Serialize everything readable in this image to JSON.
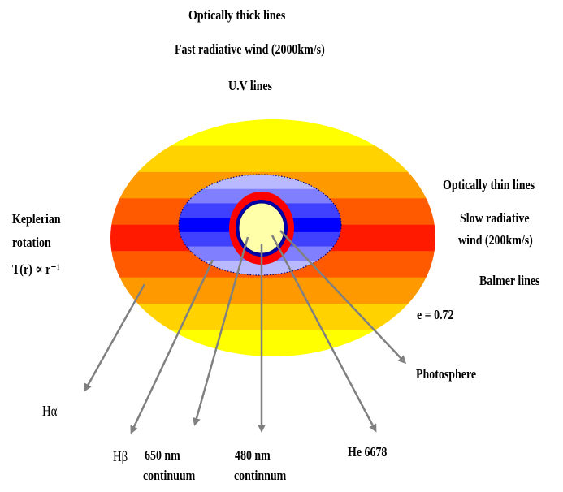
{
  "top_labels": {
    "optically_thick": "Optically thick lines",
    "fast_wind": "Fast radiative wind (2000km/s)",
    "uv_lines": "U.V lines"
  },
  "left_labels": {
    "keplerian_1": "Keplerian",
    "keplerian_2": "rotation",
    "temperature_law": "T(r) ∝ r⁻¹"
  },
  "right_labels": {
    "optically_thin": "Optically thin lines",
    "slow_wind_1": "Slow radiative",
    "slow_wind_2": "wind (200km/s)",
    "balmer": "Balmer lines",
    "eccentricity": "e = 0.72"
  },
  "pointer_labels": {
    "photosphere": "Photosphere",
    "h_alpha": "Hα",
    "h_beta": "Hβ",
    "c650_1": "650 nm",
    "c650_2": "continuum",
    "c480_1": "480 nm",
    "c480_2": "continnum",
    "he": "He 6678"
  },
  "colors": {
    "outer_bands": [
      "#ffff00",
      "#ffd200",
      "#ff9900",
      "#ff5a00",
      "#ff1a00",
      "#ff5a00",
      "#ff9900",
      "#ffd200",
      "#ffff00"
    ],
    "inner_bands": [
      "#b9b9ff",
      "#8080ff",
      "#4040ff",
      "#0000ff",
      "#4040ff",
      "#8080ff",
      "#b9b9ff"
    ],
    "red_ring": "#ff0000",
    "photosphere_fill": "#ffffaa",
    "arrow": "#808080"
  }
}
